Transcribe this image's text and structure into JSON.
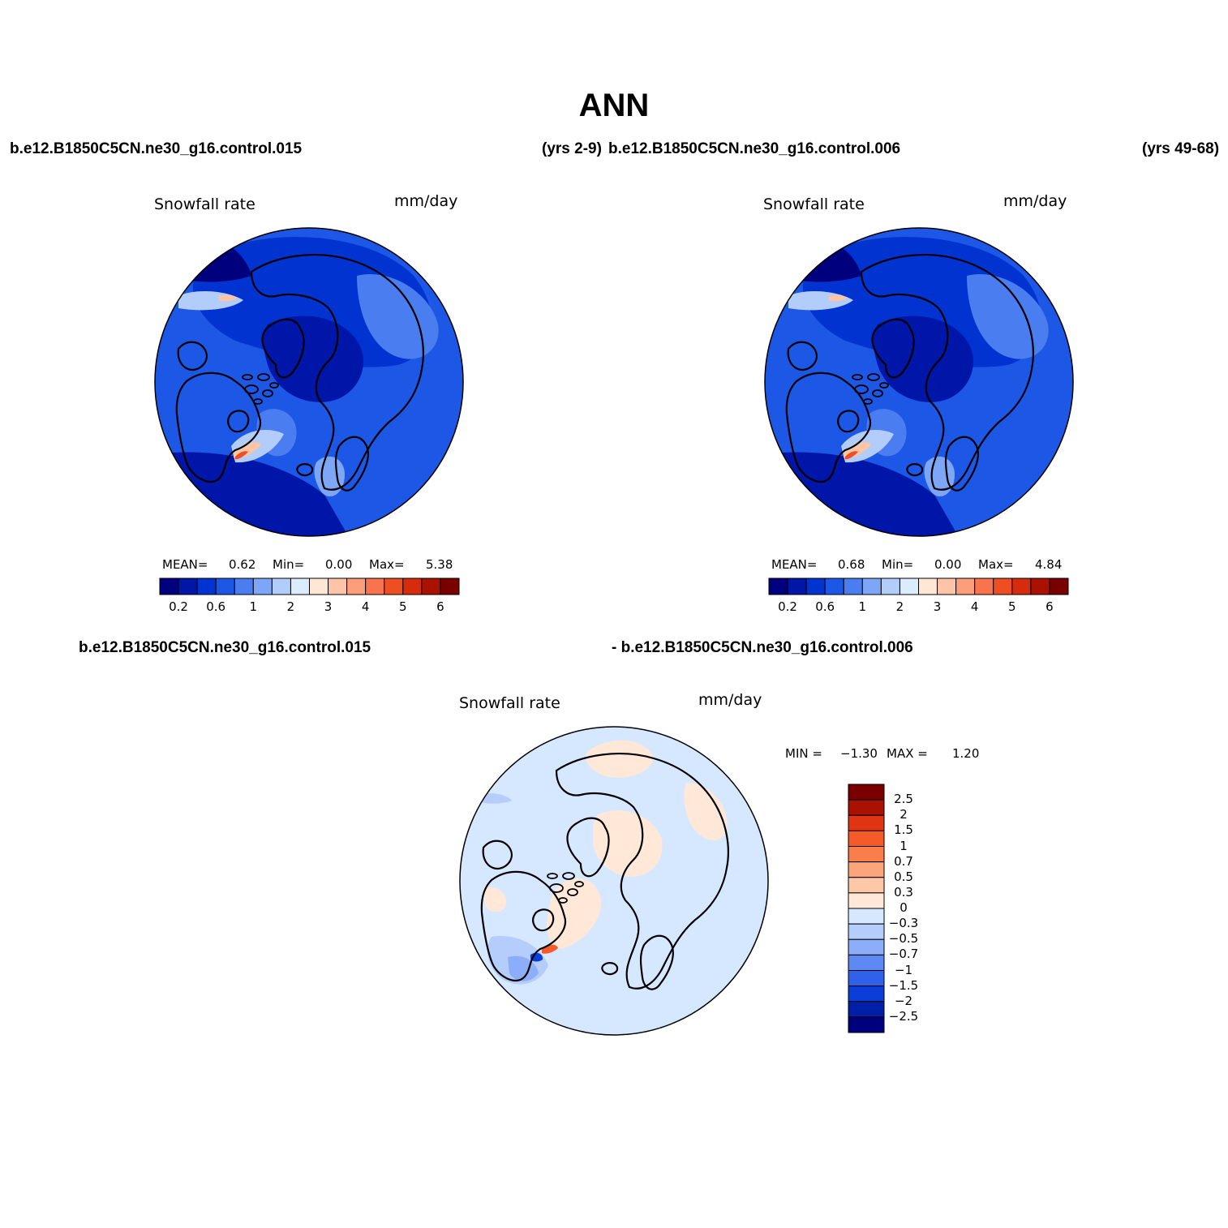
{
  "title": "ANN",
  "panels": [
    {
      "case_label": "b.e12.B1850C5CN.ne30_g16.control.015",
      "years_label": "(yrs 2-9)",
      "variable": "Snowfall rate",
      "units": "mm/day",
      "stats": {
        "mean_label": "MEAN=",
        "mean": "0.62",
        "min_label": "Min=",
        "min": "0.00",
        "max_label": "Max=",
        "max": "5.38"
      }
    },
    {
      "case_label": "b.e12.B1850C5CN.ne30_g16.control.006",
      "years_label": "(yrs 49-68)",
      "variable": "Snowfall rate",
      "units": "mm/day",
      "stats": {
        "mean_label": "MEAN=",
        "mean": "0.68",
        "min_label": "Min=",
        "min": "0.00",
        "max_label": "Max=",
        "max": "4.84"
      }
    }
  ],
  "diff_panel": {
    "case_a": "b.e12.B1850C5CN.ne30_g16.control.015",
    "case_b": "- b.e12.B1850C5CN.ne30_g16.control.006",
    "variable": "Snowfall rate",
    "units": "mm/day",
    "min_label": "MIN =",
    "min": "−1.30",
    "max_label": "MAX =",
    "max": "1.20"
  },
  "colorbar_abs": {
    "colors": [
      "#00007f",
      "#0016a8",
      "#0033d0",
      "#1c57e6",
      "#4a7ef0",
      "#7ea6f7",
      "#b3cdfb",
      "#dcecff",
      "#ffe6d5",
      "#fdc4a8",
      "#fb9e79",
      "#f7744d",
      "#ee4f22",
      "#d42c0c",
      "#aa1100",
      "#7a0000"
    ],
    "tick_labels": [
      "0.2",
      "0.6",
      "1",
      "2",
      "3",
      "4",
      "5",
      "6"
    ]
  },
  "colorbar_diff": {
    "colors_top_to_bottom": [
      "#7a0000",
      "#aa1100",
      "#e03512",
      "#f55a28",
      "#fa7d4c",
      "#fca47a",
      "#fdc8a8",
      "#ffe8d8",
      "#d6e8ff",
      "#b5cdfb",
      "#8caefa",
      "#5f89f2",
      "#2f62e8",
      "#0b3ed8",
      "#001fa8",
      "#00007f"
    ],
    "tick_labels": [
      "2.5",
      "2",
      "1.5",
      "1",
      "0.7",
      "0.5",
      "0.3",
      "0",
      "−0.3",
      "−0.5",
      "−0.7",
      "−1",
      "−1.5",
      "−2",
      "−2.5"
    ]
  }
}
